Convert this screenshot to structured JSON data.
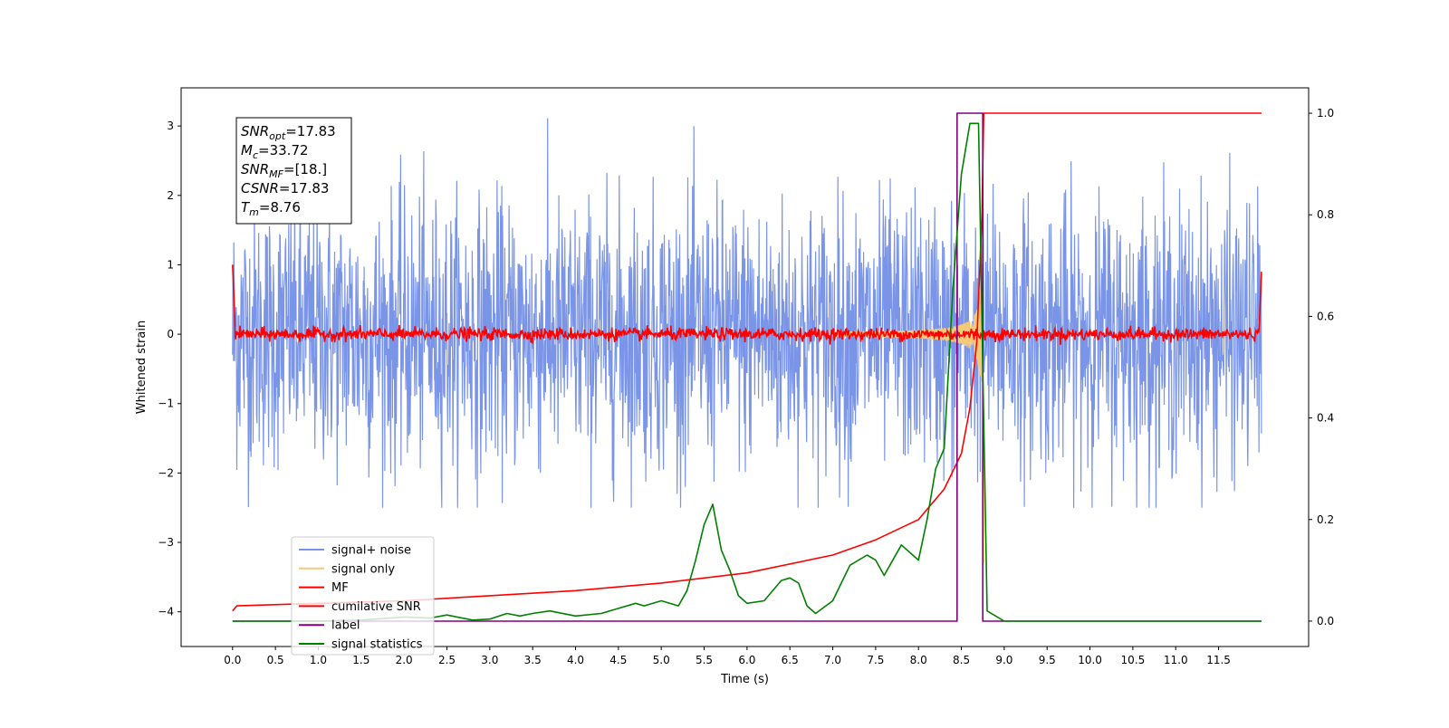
{
  "chart_data": {
    "type": "line",
    "xlabel": "Time (s)",
    "ylabel": "Whitened strain",
    "xlim": [
      -0.6,
      12.55
    ],
    "ylim": [
      -4.5,
      3.55
    ],
    "y2lim": [
      -0.05,
      1.05
    ],
    "x_ticks": [
      "0.0",
      "0.5",
      "1.0",
      "1.5",
      "2.0",
      "2.5",
      "3.0",
      "3.5",
      "4.0",
      "4.5",
      "5.0",
      "5.5",
      "6.0",
      "6.5",
      "7.0",
      "7.5",
      "8.0",
      "8.5",
      "9.0",
      "9.5",
      "10.0",
      "10.5",
      "11.0",
      "11.5"
    ],
    "y_ticks": [
      "3",
      "2",
      "1",
      "0",
      "−1",
      "−2",
      "−3",
      "−4"
    ],
    "y2_ticks": [
      "1.0",
      "0.8",
      "0.6",
      "0.4",
      "0.2",
      "0.0"
    ],
    "annotation": {
      "snr_opt": {
        "base": "SNR",
        "sub": "opt",
        "value": "=17.83"
      },
      "mc": {
        "base": "M",
        "sub": "c",
        "value": "=33.72"
      },
      "snr_mf": {
        "base": "SNR",
        "sub": "MF",
        "value": "=[18.]"
      },
      "csnr": {
        "base": "CSNR",
        "value": "=17.83"
      },
      "tm": {
        "base": "T",
        "sub": "m",
        "value": "=8.76"
      }
    },
    "legend_placement": "lower-left",
    "series": [
      {
        "name": "signal+ noise",
        "color": "#7a95e8",
        "axis": "left",
        "style": "noise",
        "x_range": [
          0,
          12
        ],
        "envelope": 2.5
      },
      {
        "name": "signal only",
        "color": "#f5c87a",
        "axis": "left",
        "style": "chirp",
        "peak_time": 8.76,
        "peak_amplitude": 1.3
      },
      {
        "name": "MF",
        "color": "#ff0000",
        "axis": "left",
        "style": "noise-small",
        "x_range": [
          0,
          12
        ],
        "envelope": 0.15
      },
      {
        "name": "cumilative SNR",
        "color": "#ff0000",
        "axis": "right",
        "x": [
          0.0,
          0.05,
          1,
          2,
          3,
          4,
          5,
          6,
          7,
          7.5,
          8.0,
          8.3,
          8.5,
          8.6,
          8.68,
          8.74,
          8.76,
          12.0
        ],
        "y": [
          0.02,
          0.03,
          0.035,
          0.04,
          0.05,
          0.06,
          0.075,
          0.095,
          0.13,
          0.16,
          0.2,
          0.26,
          0.33,
          0.42,
          0.55,
          0.8,
          1.0,
          1.0
        ]
      },
      {
        "name": "label",
        "color": "#800080",
        "axis": "right",
        "x": [
          0.0,
          8.45,
          8.45,
          8.75,
          8.75,
          12.0
        ],
        "y": [
          0.0,
          0.0,
          1.0,
          1.0,
          0.0,
          0.0
        ]
      },
      {
        "name": "signal statistics",
        "color": "#008000",
        "axis": "right",
        "x": [
          0.0,
          1.0,
          1.5,
          2.0,
          2.3,
          2.5,
          2.8,
          3.0,
          3.2,
          3.35,
          3.5,
          3.7,
          4.0,
          4.3,
          4.5,
          4.7,
          4.8,
          5.0,
          5.2,
          5.3,
          5.4,
          5.5,
          5.6,
          5.7,
          5.8,
          5.9,
          6.0,
          6.2,
          6.4,
          6.5,
          6.6,
          6.7,
          6.8,
          7.0,
          7.2,
          7.4,
          7.5,
          7.6,
          7.8,
          8.0,
          8.1,
          8.2,
          8.3,
          8.4,
          8.5,
          8.6,
          8.7,
          8.75,
          8.8,
          9.0,
          12.0
        ],
        "y": [
          0.0,
          0.0,
          0.002,
          0.008,
          0.006,
          0.012,
          0.002,
          0.004,
          0.015,
          0.01,
          0.015,
          0.02,
          0.01,
          0.015,
          0.025,
          0.035,
          0.03,
          0.04,
          0.03,
          0.06,
          0.12,
          0.19,
          0.23,
          0.14,
          0.1,
          0.05,
          0.035,
          0.04,
          0.08,
          0.085,
          0.075,
          0.03,
          0.015,
          0.04,
          0.11,
          0.13,
          0.12,
          0.09,
          0.15,
          0.12,
          0.2,
          0.3,
          0.34,
          0.65,
          0.88,
          0.98,
          0.98,
          0.5,
          0.02,
          0.0,
          0.0
        ]
      }
    ]
  }
}
